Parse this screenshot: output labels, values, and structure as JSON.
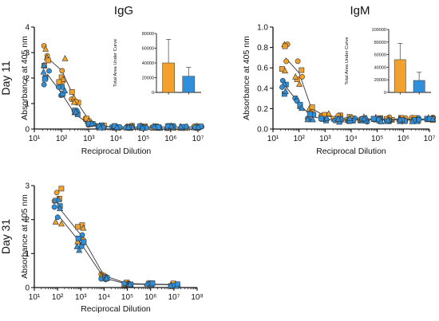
{
  "colors": {
    "orange": "#f2a22c",
    "blue": "#2f8fd8",
    "edge": "#333333",
    "axis": "#111111"
  },
  "markers": [
    "circle",
    "square",
    "triangle"
  ],
  "chart_data": [
    {
      "id": "igg-day11",
      "type": "scatter",
      "title": "IgG",
      "row_label": "Day 11",
      "xlabel": "Reciprocal Dilution",
      "ylabel": "Absorbance at 405 nm",
      "xscale": "log",
      "xlim": [
        10,
        10000000
      ],
      "ylim": [
        0,
        4
      ],
      "xticks": [
        "10¹",
        "10²",
        "10³",
        "10⁴",
        "10⁵",
        "10⁶",
        "10⁷"
      ],
      "yticks": [
        "0",
        "1",
        "2",
        "3",
        "4"
      ],
      "grid": false,
      "series": [
        {
          "color_key": "orange",
          "x": [
            30,
            100,
            300,
            1000,
            3000,
            10000,
            30000,
            100000,
            300000,
            1000000,
            3000000,
            10000000
          ],
          "y": [
            2.8,
            2.3,
            1.2,
            0.35,
            0.12,
            0.08,
            0.08,
            0.08,
            0.08,
            0.08,
            0.08,
            0.08
          ]
        },
        {
          "color_key": "blue",
          "x": [
            30,
            100,
            300,
            1000,
            3000,
            10000,
            30000,
            100000,
            300000,
            1000000,
            3000000,
            10000000
          ],
          "y": [
            2.15,
            1.4,
            0.6,
            0.2,
            0.1,
            0.08,
            0.08,
            0.08,
            0.08,
            0.08,
            0.08,
            0.08
          ]
        }
      ],
      "inset": {
        "type": "bar",
        "ylabel": "Total Area Under Curve",
        "ylim": [
          0,
          80000
        ],
        "yticks": [
          "0",
          "20000",
          "40000",
          "60000",
          "80000"
        ],
        "values": [
          40000,
          22000
        ],
        "errors": [
          32000,
          12000
        ],
        "color_keys": [
          "orange",
          "blue"
        ]
      }
    },
    {
      "id": "igm-day11",
      "type": "scatter",
      "title": "IgM",
      "row_label": "",
      "xlabel": "Reciprocal Dilution",
      "ylabel": "Absorbance at 405 nm",
      "xscale": "log",
      "xlim": [
        10,
        10000000
      ],
      "ylim": [
        0,
        1.0
      ],
      "xticks": [
        "10¹",
        "10²",
        "10³",
        "10⁴",
        "10⁵",
        "10⁶",
        "10⁷"
      ],
      "yticks": [
        "0.0",
        "0.2",
        "0.4",
        "0.6",
        "0.8",
        "1.0"
      ],
      "grid": false,
      "series": [
        {
          "color_key": "orange",
          "x": [
            30,
            100,
            300,
            1000,
            3000,
            10000,
            30000,
            100000,
            300000,
            1000000,
            3000000,
            10000000
          ],
          "y": [
            0.7,
            0.55,
            0.2,
            0.13,
            0.11,
            0.1,
            0.1,
            0.1,
            0.1,
            0.1,
            0.1,
            0.1
          ]
        },
        {
          "color_key": "blue",
          "x": [
            30,
            100,
            300,
            1000,
            3000,
            10000,
            30000,
            100000,
            300000,
            1000000,
            3000000,
            10000000
          ],
          "y": [
            0.42,
            0.25,
            0.12,
            0.1,
            0.09,
            0.09,
            0.09,
            0.09,
            0.09,
            0.09,
            0.09,
            0.09
          ]
        }
      ],
      "inset": {
        "type": "bar",
        "ylabel": "Total Area Under Curve",
        "ylim": [
          0,
          100000
        ],
        "yticks": [
          "0",
          "20000",
          "40000",
          "60000",
          "80000",
          "100000"
        ],
        "values": [
          52000,
          19000
        ],
        "errors": [
          26000,
          13000
        ],
        "color_keys": [
          "orange",
          "blue"
        ]
      }
    },
    {
      "id": "igg-day31",
      "type": "scatter",
      "title": "",
      "row_label": "Day 31",
      "xlabel": "Reciprocal Dilution",
      "ylabel": "Absorbance at 405 nm",
      "xscale": "log",
      "xlim": [
        10,
        100000000
      ],
      "ylim": [
        0,
        3
      ],
      "xticks": [
        "10¹",
        "10²",
        "10³",
        "10⁴",
        "10⁵",
        "10⁶",
        "10⁷",
        "10⁸"
      ],
      "yticks": [
        "0",
        "1",
        "2",
        "3"
      ],
      "grid": false,
      "series": [
        {
          "color_key": "orange",
          "x": [
            100,
            1000,
            10000,
            100000,
            1000000,
            10000000
          ],
          "y": [
            2.4,
            1.55,
            0.35,
            0.12,
            0.1,
            0.09
          ]
        },
        {
          "color_key": "blue",
          "x": [
            100,
            1000,
            10000,
            100000,
            1000000,
            10000000
          ],
          "y": [
            2.15,
            1.3,
            0.28,
            0.1,
            0.09,
            0.08
          ]
        }
      ]
    }
  ]
}
